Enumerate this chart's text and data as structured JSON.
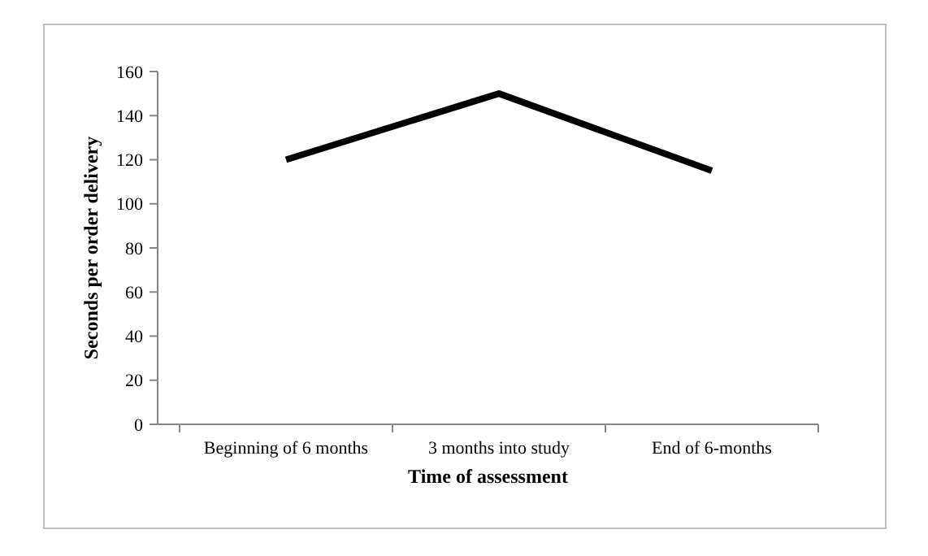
{
  "chart_data": {
    "type": "line",
    "xlabel": "Time of assessment",
    "ylabel": "Seconds per order delivery",
    "categories": [
      "Beginning of 6 months",
      "3 months into study",
      "End of 6-months"
    ],
    "series": [
      {
        "color": "#000000",
        "values": [
          120,
          150,
          115
        ]
      }
    ],
    "ylim": [
      0,
      160
    ],
    "yticks": [
      0,
      20,
      40,
      60,
      80,
      100,
      120,
      140,
      160
    ],
    "grid": false,
    "marker": "none",
    "line_style": "solid"
  }
}
